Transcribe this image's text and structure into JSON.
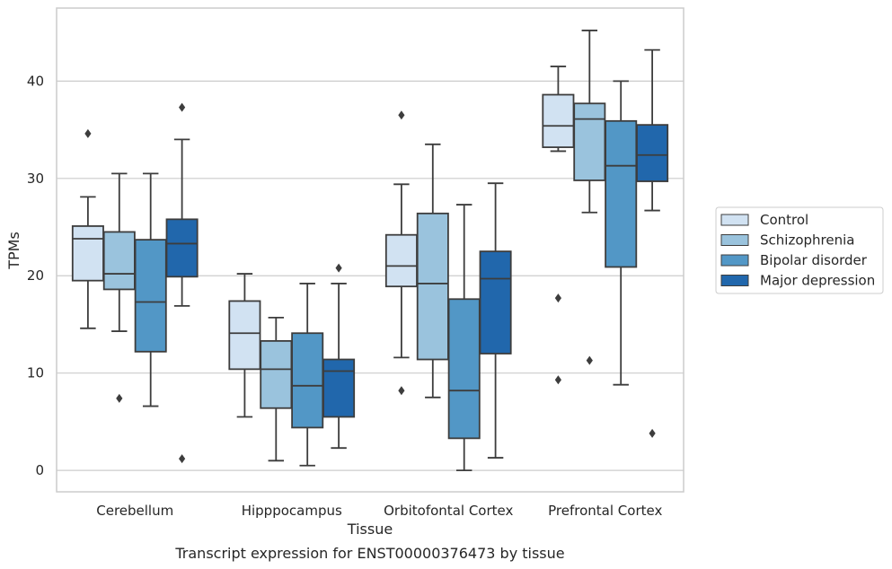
{
  "chart_data": {
    "type": "box",
    "caption": "Transcript expression for ENST00000376473 by tissue",
    "xlabel": "Tissue",
    "ylabel": "TPMs",
    "ylim": [
      -2.2,
      47.5
    ],
    "yticks": [
      0,
      10,
      20,
      30,
      40
    ],
    "grid": true,
    "legend_position": "right",
    "categories": [
      "Cerebellum",
      "Hipppocampus",
      "Orbitofontal Cortex",
      "Prefrontal Cortex"
    ],
    "series": [
      {
        "name": "Control",
        "color": "#d1e2f2",
        "boxes": [
          {
            "whislo": 14.6,
            "q1": 19.5,
            "med": 23.8,
            "q3": 25.1,
            "whishi": 28.1,
            "fliers": [
              34.6
            ]
          },
          {
            "whislo": 5.5,
            "q1": 10.4,
            "med": 14.1,
            "q3": 17.4,
            "whishi": 20.2,
            "fliers": []
          },
          {
            "whislo": 11.6,
            "q1": 18.9,
            "med": 21.0,
            "q3": 24.2,
            "whishi": 29.4,
            "fliers": [
              8.2,
              36.5
            ]
          },
          {
            "whislo": 32.8,
            "q1": 33.2,
            "med": 35.4,
            "q3": 38.6,
            "whishi": 41.5,
            "fliers": [
              9.3,
              17.7
            ]
          }
        ]
      },
      {
        "name": "Schizophrenia",
        "color": "#9ac3dd",
        "boxes": [
          {
            "whislo": 14.3,
            "q1": 18.6,
            "med": 20.2,
            "q3": 24.5,
            "whishi": 30.5,
            "fliers": [
              7.4
            ]
          },
          {
            "whislo": 1.0,
            "q1": 6.4,
            "med": 10.4,
            "q3": 13.3,
            "whishi": 15.7,
            "fliers": []
          },
          {
            "whislo": 7.5,
            "q1": 11.4,
            "med": 19.2,
            "q3": 26.4,
            "whishi": 33.5,
            "fliers": []
          },
          {
            "whislo": 26.5,
            "q1": 29.8,
            "med": 36.1,
            "q3": 37.7,
            "whishi": 45.2,
            "fliers": [
              11.3
            ]
          }
        ]
      },
      {
        "name": "Bipolar disorder",
        "color": "#5297c6",
        "boxes": [
          {
            "whislo": 6.6,
            "q1": 12.2,
            "med": 17.3,
            "q3": 23.7,
            "whishi": 30.5,
            "fliers": []
          },
          {
            "whislo": 0.5,
            "q1": 4.4,
            "med": 8.7,
            "q3": 14.1,
            "whishi": 19.2,
            "fliers": []
          },
          {
            "whislo": 0.0,
            "q1": 3.3,
            "med": 8.2,
            "q3": 17.6,
            "whishi": 27.3,
            "fliers": []
          },
          {
            "whislo": 8.8,
            "q1": 20.9,
            "med": 31.3,
            "q3": 35.9,
            "whishi": 40.0,
            "fliers": []
          }
        ]
      },
      {
        "name": "Major depression",
        "color": "#2167ac",
        "boxes": [
          {
            "whislo": 16.9,
            "q1": 19.9,
            "med": 23.3,
            "q3": 25.8,
            "whishi": 34.0,
            "fliers": [
              1.2,
              37.3
            ]
          },
          {
            "whislo": 2.3,
            "q1": 5.5,
            "med": 10.2,
            "q3": 11.4,
            "whishi": 19.2,
            "fliers": [
              20.8
            ]
          },
          {
            "whislo": 1.3,
            "q1": 12.0,
            "med": 19.7,
            "q3": 22.5,
            "whishi": 29.5,
            "fliers": []
          },
          {
            "whislo": 26.7,
            "q1": 29.7,
            "med": 32.4,
            "q3": 35.5,
            "whishi": 43.2,
            "fliers": [
              3.8
            ]
          }
        ]
      }
    ]
  }
}
